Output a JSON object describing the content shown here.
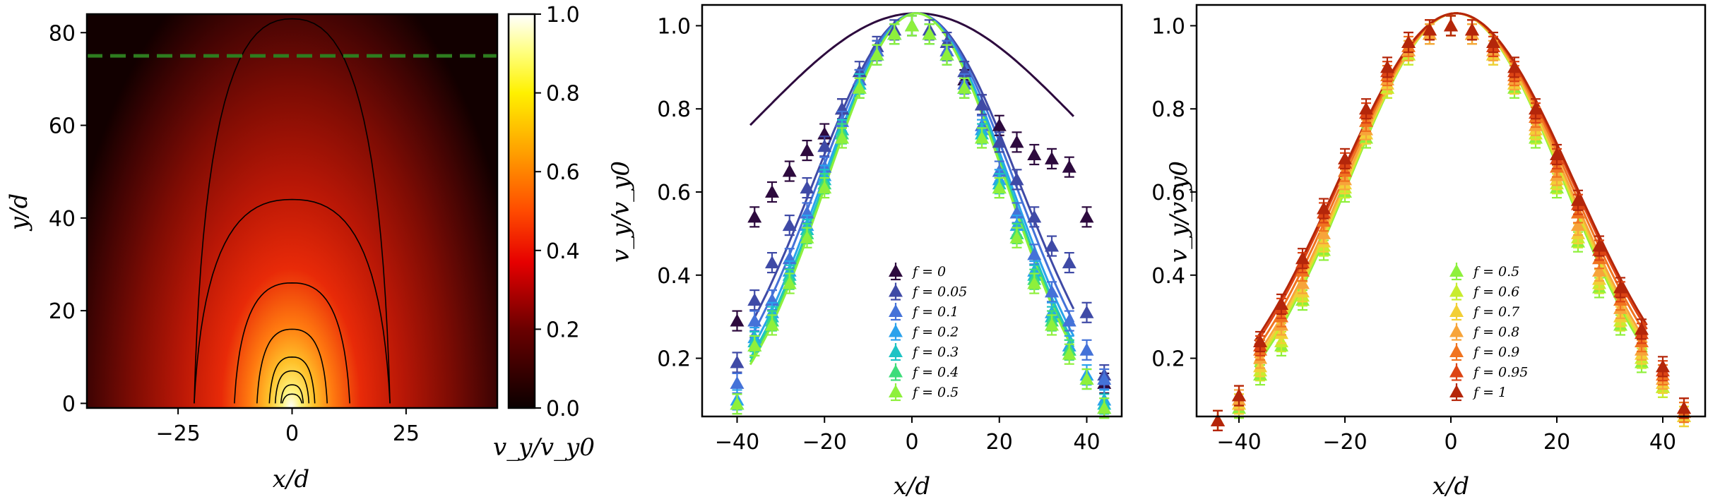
{
  "chart_data": [
    {
      "type": "heatmap",
      "title": "",
      "xlabel": "x/d",
      "ylabel": "y/d",
      "xlim": [
        -45,
        45
      ],
      "ylim": [
        -1,
        84
      ],
      "xticks": [
        "−25",
        "0",
        "25"
      ],
      "yticks": [
        "0",
        "20",
        "40",
        "60",
        "80"
      ],
      "dashed_line_y": 75,
      "dashed_line_color": "#2e7d1f",
      "contour_heights": [
        2,
        4,
        7,
        10,
        16,
        26,
        44,
        83
      ],
      "colormap": "hot",
      "colorbar": {
        "label": "v_y/v_y0",
        "range": [
          0,
          1
        ],
        "ticks": [
          "0.0",
          "0.2",
          "0.4",
          "0.6",
          "0.8",
          "1.0"
        ]
      }
    },
    {
      "type": "scatter",
      "title": "",
      "xlabel": "x/d",
      "ylabel": "v_y/v_y0",
      "xlim": [
        -48,
        48
      ],
      "ylim": [
        0.06,
        1.05
      ],
      "xticks": [
        "−40",
        "−20",
        "0",
        "20",
        "40"
      ],
      "yticks": [
        "0.2",
        "0.4",
        "0.6",
        "0.8",
        "1.0"
      ],
      "legend_position": "lower-center",
      "series": [
        {
          "name": "f = 0",
          "color": "#2d0a3e",
          "sigma": 36,
          "base": 0.4,
          "x": [
            -40,
            -36,
            -32,
            -28,
            -24,
            -20,
            -16,
            -12,
            -8,
            -4,
            0,
            4,
            8,
            12,
            16,
            20,
            24,
            28,
            32,
            36,
            40,
            44
          ],
          "y": [
            0.29,
            0.54,
            0.6,
            0.65,
            0.7,
            0.74,
            0.8,
            0.87,
            0.94,
            0.98,
            1.0,
            0.98,
            0.94,
            0.87,
            0.81,
            0.76,
            0.72,
            0.69,
            0.68,
            0.66,
            0.54,
            0.14
          ]
        },
        {
          "name": "f = 0.05",
          "color": "#3f4aa6",
          "sigma": 23.5,
          "base": 0.0,
          "x": [
            -40,
            -36,
            -32,
            -28,
            -24,
            -20,
            -16,
            -12,
            -8,
            -4,
            0,
            4,
            8,
            12,
            16,
            20,
            24,
            28,
            32,
            36,
            40,
            44
          ],
          "y": [
            0.19,
            0.34,
            0.43,
            0.52,
            0.61,
            0.71,
            0.8,
            0.89,
            0.95,
            0.99,
            1.0,
            0.99,
            0.96,
            0.89,
            0.81,
            0.72,
            0.63,
            0.54,
            0.47,
            0.43,
            0.31,
            0.16
          ]
        },
        {
          "name": "f = 0.1",
          "color": "#4472d8",
          "sigma": 22.5,
          "base": 0.0,
          "x": [
            -40,
            -36,
            -32,
            -28,
            -24,
            -20,
            -16,
            -12,
            -8,
            -4,
            0,
            4,
            8,
            12,
            16,
            20,
            24,
            28,
            32,
            36,
            40,
            44
          ],
          "y": [
            0.14,
            0.29,
            0.34,
            0.44,
            0.55,
            0.66,
            0.77,
            0.87,
            0.94,
            0.98,
            1.0,
            0.98,
            0.94,
            0.86,
            0.76,
            0.65,
            0.55,
            0.45,
            0.36,
            0.29,
            0.22,
            0.15
          ]
        },
        {
          "name": "f = 0.2",
          "color": "#2aa2ec",
          "sigma": 21.5,
          "base": 0.0,
          "x": [
            -40,
            -36,
            -32,
            -28,
            -24,
            -20,
            -16,
            -12,
            -8,
            -4,
            0,
            4,
            8,
            12,
            16,
            20,
            24,
            28,
            32,
            36,
            40,
            44
          ],
          "y": [
            0.1,
            0.25,
            0.31,
            0.41,
            0.52,
            0.64,
            0.75,
            0.86,
            0.93,
            0.98,
            1.0,
            0.98,
            0.93,
            0.85,
            0.75,
            0.63,
            0.52,
            0.41,
            0.31,
            0.23,
            0.16,
            0.1
          ]
        },
        {
          "name": "f = 0.3",
          "color": "#1ec3c4",
          "sigma": 21,
          "base": 0.0,
          "x": [
            -40,
            -36,
            -32,
            -28,
            -24,
            -20,
            -16,
            -12,
            -8,
            -4,
            0,
            4,
            8,
            12,
            16,
            20,
            24,
            28,
            32,
            36,
            40,
            44
          ],
          "y": [
            0.09,
            0.24,
            0.3,
            0.4,
            0.51,
            0.63,
            0.75,
            0.86,
            0.93,
            0.98,
            1.0,
            0.98,
            0.93,
            0.85,
            0.74,
            0.62,
            0.5,
            0.4,
            0.3,
            0.22,
            0.15,
            0.09
          ]
        },
        {
          "name": "f = 0.4",
          "color": "#3ddc7a",
          "sigma": 20.7,
          "base": 0.0,
          "x": [
            -40,
            -36,
            -32,
            -28,
            -24,
            -20,
            -16,
            -12,
            -8,
            -4,
            0,
            4,
            8,
            12,
            16,
            20,
            24,
            28,
            32,
            36,
            40,
            44
          ],
          "y": [
            0.09,
            0.23,
            0.29,
            0.39,
            0.5,
            0.62,
            0.74,
            0.85,
            0.93,
            0.98,
            1.0,
            0.98,
            0.93,
            0.85,
            0.73,
            0.61,
            0.5,
            0.39,
            0.29,
            0.22,
            0.15,
            0.08
          ]
        },
        {
          "name": "f = 0.5",
          "color": "#8ef03c",
          "sigma": 20.5,
          "base": 0.0,
          "x": [
            -40,
            -36,
            -32,
            -28,
            -24,
            -20,
            -16,
            -12,
            -8,
            -4,
            0,
            4,
            8,
            12,
            16,
            20,
            24,
            28,
            32,
            36,
            40,
            44
          ],
          "y": [
            0.09,
            0.23,
            0.28,
            0.38,
            0.49,
            0.61,
            0.73,
            0.85,
            0.93,
            0.98,
            1.0,
            0.98,
            0.93,
            0.85,
            0.73,
            0.61,
            0.49,
            0.38,
            0.28,
            0.21,
            0.15,
            0.08
          ]
        }
      ]
    },
    {
      "type": "scatter",
      "title": "",
      "xlabel": "x/d",
      "ylabel": "v_y/v_y0",
      "xlim": [
        -48,
        48
      ],
      "ylim": [
        0.06,
        1.05
      ],
      "xticks": [
        "−40",
        "−20",
        "0",
        "20",
        "40"
      ],
      "yticks": [
        "0.2",
        "0.4",
        "0.6",
        "0.8",
        "1.0"
      ],
      "legend_position": "lower-center",
      "series": [
        {
          "name": "f = 0.5",
          "color": "#8ef03c",
          "sigma": 20.3,
          "base": 0.0,
          "x": [
            -44,
            -40,
            -36,
            -32,
            -28,
            -24,
            -20,
            -16,
            -12,
            -8,
            -4,
            0,
            4,
            8,
            12,
            16,
            20,
            24,
            28,
            32,
            36,
            40,
            44
          ],
          "y": [
            0.05,
            0.08,
            0.16,
            0.23,
            0.34,
            0.46,
            0.6,
            0.73,
            0.85,
            0.93,
            0.98,
            1.0,
            0.98,
            0.93,
            0.85,
            0.73,
            0.61,
            0.48,
            0.37,
            0.28,
            0.19,
            0.13,
            0.06
          ]
        },
        {
          "name": "f = 0.6",
          "color": "#c8ec2e",
          "sigma": 20.5,
          "base": 0.0,
          "x": [
            -44,
            -40,
            -36,
            -32,
            -28,
            -24,
            -20,
            -16,
            -12,
            -8,
            -4,
            0,
            4,
            8,
            12,
            16,
            20,
            24,
            28,
            32,
            36,
            40,
            44
          ],
          "y": [
            0.05,
            0.09,
            0.17,
            0.24,
            0.35,
            0.47,
            0.61,
            0.74,
            0.85,
            0.93,
            0.98,
            1.0,
            0.98,
            0.93,
            0.86,
            0.74,
            0.62,
            0.49,
            0.38,
            0.29,
            0.2,
            0.13,
            0.06
          ]
        },
        {
          "name": "f = 0.7",
          "color": "#f2cf36",
          "sigma": 20.7,
          "base": 0.0,
          "x": [
            -44,
            -40,
            -36,
            -32,
            -28,
            -24,
            -20,
            -16,
            -12,
            -8,
            -4,
            0,
            4,
            8,
            12,
            16,
            20,
            24,
            28,
            32,
            36,
            40,
            44
          ],
          "y": [
            0.05,
            0.09,
            0.18,
            0.26,
            0.36,
            0.48,
            0.62,
            0.74,
            0.86,
            0.94,
            0.98,
            1.0,
            0.98,
            0.93,
            0.86,
            0.75,
            0.63,
            0.5,
            0.39,
            0.3,
            0.21,
            0.14,
            0.06
          ]
        },
        {
          "name": "f = 0.8",
          "color": "#f7a43a",
          "sigma": 21,
          "base": 0.0,
          "x": [
            -44,
            -40,
            -36,
            -32,
            -28,
            -24,
            -20,
            -16,
            -12,
            -8,
            -4,
            0,
            4,
            8,
            12,
            16,
            20,
            24,
            28,
            32,
            36,
            40,
            44
          ],
          "y": [
            0.05,
            0.1,
            0.2,
            0.28,
            0.38,
            0.5,
            0.63,
            0.75,
            0.87,
            0.94,
            0.98,
            1.0,
            0.98,
            0.94,
            0.87,
            0.76,
            0.64,
            0.52,
            0.41,
            0.32,
            0.22,
            0.15,
            0.07
          ]
        },
        {
          "name": "f = 0.9",
          "color": "#f0731f",
          "sigma": 21.5,
          "base": 0.0,
          "x": [
            -44,
            -40,
            -36,
            -32,
            -28,
            -24,
            -20,
            -16,
            -12,
            -8,
            -4,
            0,
            4,
            8,
            12,
            16,
            20,
            24,
            28,
            32,
            36,
            40,
            44
          ],
          "y": [
            0.05,
            0.11,
            0.22,
            0.3,
            0.41,
            0.53,
            0.65,
            0.77,
            0.88,
            0.95,
            0.99,
            1.0,
            0.99,
            0.95,
            0.88,
            0.78,
            0.66,
            0.55,
            0.44,
            0.34,
            0.24,
            0.16,
            0.07
          ]
        },
        {
          "name": "f = 0.95",
          "color": "#dc4414",
          "sigma": 22,
          "base": 0.0,
          "x": [
            -44,
            -40,
            -36,
            -32,
            -28,
            -24,
            -20,
            -16,
            -12,
            -8,
            -4,
            0,
            4,
            8,
            12,
            16,
            20,
            24,
            28,
            32,
            36,
            40,
            44
          ],
          "y": [
            0.05,
            0.11,
            0.23,
            0.32,
            0.43,
            0.55,
            0.67,
            0.79,
            0.89,
            0.96,
            0.99,
            1.0,
            0.99,
            0.95,
            0.89,
            0.79,
            0.68,
            0.57,
            0.46,
            0.36,
            0.26,
            0.17,
            0.08
          ]
        },
        {
          "name": "f = 1",
          "color": "#b4260a",
          "sigma": 22.3,
          "base": 0.0,
          "x": [
            -44,
            -40,
            -36,
            -32,
            -28,
            -24,
            -20,
            -16,
            -12,
            -8,
            -4,
            0,
            4,
            8,
            12,
            16,
            20,
            24,
            28,
            32,
            36,
            40,
            44
          ],
          "y": [
            0.05,
            0.11,
            0.24,
            0.33,
            0.44,
            0.56,
            0.68,
            0.8,
            0.9,
            0.96,
            0.99,
            1.0,
            0.99,
            0.96,
            0.9,
            0.8,
            0.69,
            0.58,
            0.47,
            0.37,
            0.27,
            0.18,
            0.08
          ]
        }
      ]
    }
  ]
}
